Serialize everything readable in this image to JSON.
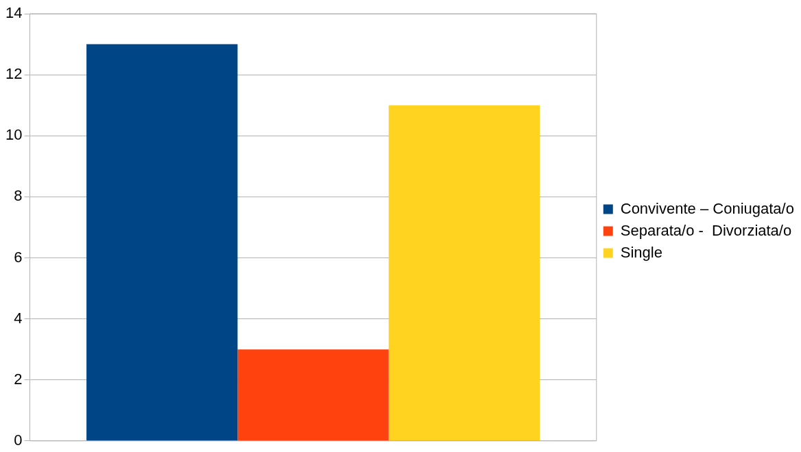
{
  "chart_data": {
    "type": "bar",
    "categories": [
      null
    ],
    "series": [
      {
        "name": "Convivente – Coniugata/o",
        "color": "#004586",
        "values": [
          13
        ]
      },
      {
        "name": "Separata/o -  Divorziata/o",
        "color": "#ff420e",
        "values": [
          3
        ]
      },
      {
        "name": "Single",
        "color": "#ffd320",
        "values": [
          11
        ]
      }
    ],
    "ylim": [
      0,
      14
    ],
    "yticks": [
      0,
      2,
      4,
      6,
      8,
      10,
      12,
      14
    ],
    "grid": "y",
    "legend": "right"
  }
}
